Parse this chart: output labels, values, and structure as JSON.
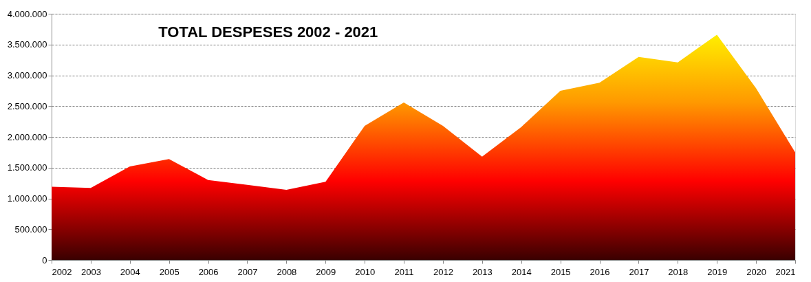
{
  "chart_data": {
    "type": "area",
    "title": "TOTAL DESPESES 2002 - 2021",
    "categories": [
      "2002",
      "2003",
      "2004",
      "2005",
      "2006",
      "2007",
      "2008",
      "2009",
      "2010",
      "2011",
      "2012",
      "2013",
      "2014",
      "2015",
      "2016",
      "2017",
      "2018",
      "2019",
      "2020",
      "2021"
    ],
    "series": [
      {
        "color": "#ff9900",
        "values": [
          1190000,
          1170000,
          1520000,
          1640000,
          1300000,
          1220000,
          1140000,
          1270000,
          2180000,
          2560000,
          2180000,
          1680000,
          2160000,
          2750000,
          2880000,
          3300000,
          3210000,
          3660000,
          2790000,
          1750000
        ]
      }
    ],
    "ylim": [
      0,
      4000000
    ],
    "yticks": [
      {
        "value": 0,
        "label": "0"
      },
      {
        "value": 500000,
        "label": "500.000"
      },
      {
        "value": 1000000,
        "label": "1.000.000"
      },
      {
        "value": 1500000,
        "label": "1.500.000"
      },
      {
        "value": 2000000,
        "label": "2.000.000"
      },
      {
        "value": 2500000,
        "label": "2.500.000"
      },
      {
        "value": 3000000,
        "label": "3.000.000"
      },
      {
        "value": 3500000,
        "label": "3.500.000"
      },
      {
        "value": 4000000,
        "label": "4.000.000"
      }
    ],
    "grid": "y"
  }
}
